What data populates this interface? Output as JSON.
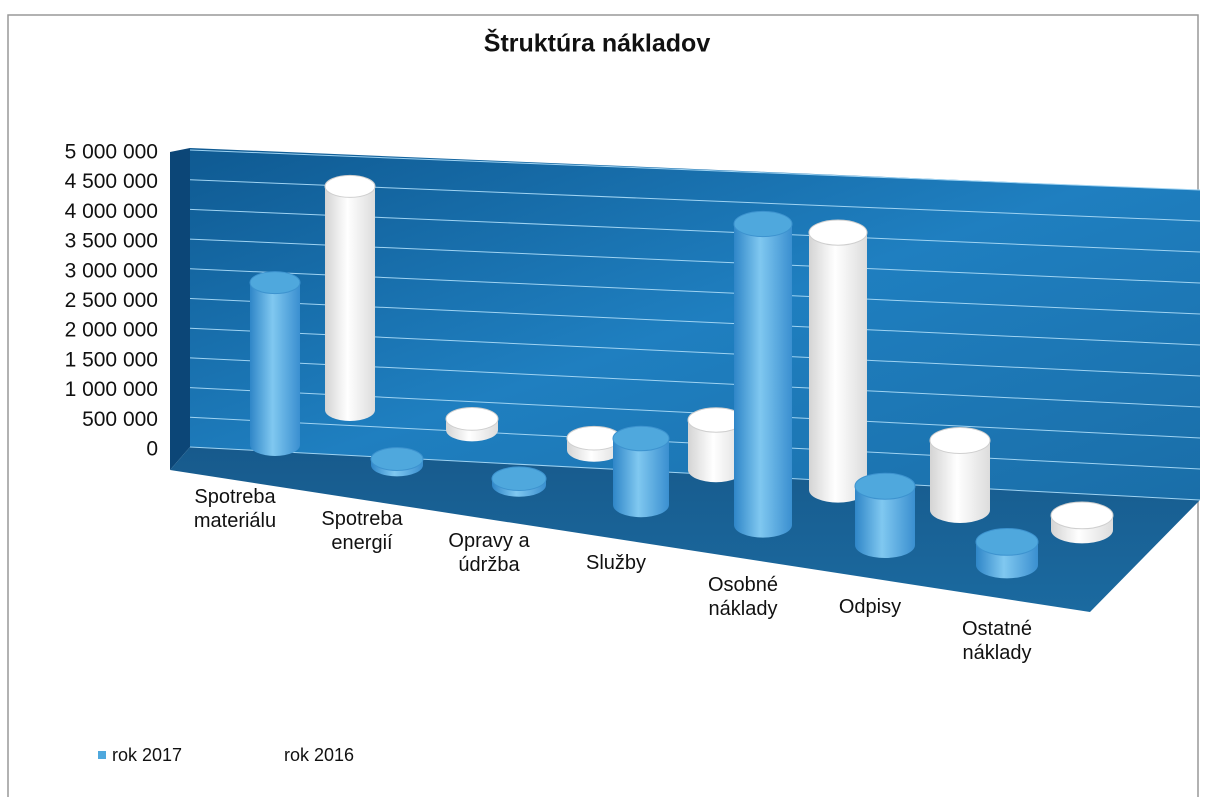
{
  "chart_data": {
    "type": "bar3d",
    "title": "Štruktúra nákladov",
    "categories": [
      "Spotreba materiálu",
      "Spotreba energií",
      "Opravy a údržba",
      "Služby",
      "Osobné náklady",
      "Odpisy",
      "Ostatné náklady"
    ],
    "series": [
      {
        "name": "rok 2017",
        "color": "#4fa8dd",
        "values": [
          2900000,
          100000,
          100000,
          1000000,
          4300000,
          800000,
          300000
        ]
      },
      {
        "name": "rok 2016",
        "color": "#ffffff",
        "values": [
          4300000,
          200000,
          200000,
          800000,
          3900000,
          1000000,
          200000
        ]
      }
    ],
    "ylim": [
      0,
      5000000
    ],
    "yticks": [
      0,
      {
        "value": 500000,
        "label": "500 000"
      },
      {
        "value": 1000000,
        "label": "1 000 000"
      },
      {
        "value": 1500000,
        "label": "1 500 000"
      },
      {
        "value": 2000000,
        "label": "2 000 000"
      },
      {
        "value": 2500000,
        "label": "2 500 000"
      },
      {
        "value": 3000000,
        "label": "3 000 000"
      },
      {
        "value": 3500000,
        "label": "3 500 000"
      },
      {
        "value": 4000000,
        "label": "4 000 000"
      },
      {
        "value": 4500000,
        "label": "4 500 000"
      },
      {
        "value": 5000000,
        "label": "5 000 000"
      }
    ],
    "grid": true,
    "legend": "bottom-left"
  }
}
